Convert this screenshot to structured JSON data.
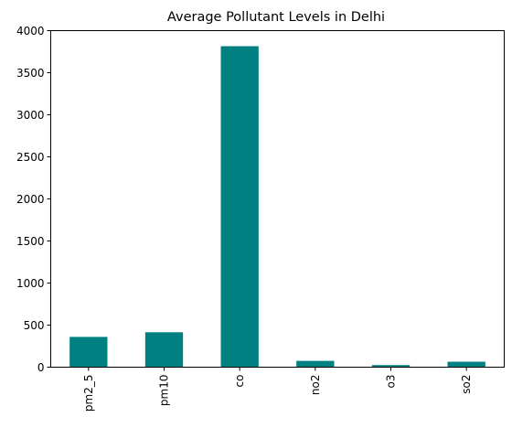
{
  "chart_data": {
    "type": "bar",
    "title": "Average Pollutant Levels in Delhi",
    "xlabel": "",
    "ylabel": "",
    "categories": [
      "pm2_5",
      "pm10",
      "co",
      "no2",
      "o3",
      "so2"
    ],
    "values": [
      360,
      415,
      3815,
      75,
      25,
      65
    ],
    "ylim": [
      0,
      4000
    ],
    "yticks": [
      0,
      500,
      1000,
      1500,
      2000,
      2500,
      3000,
      3500,
      4000
    ],
    "bar_color": "#008080",
    "grid": false,
    "legend": "none"
  }
}
